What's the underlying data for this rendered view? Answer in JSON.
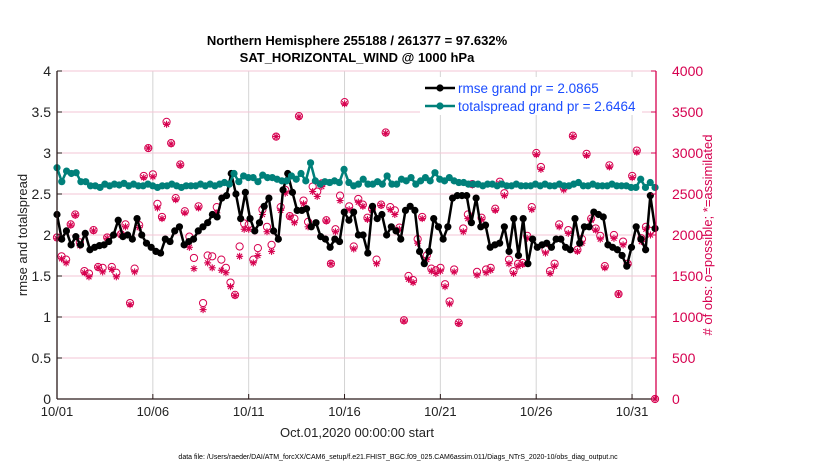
{
  "chart_data": {
    "type": "line",
    "title": [
      "Northern Hemisphere 255188 / 261377 = 97.632%",
      "SAT_HORIZONTAL_WIND @ 1000 hPa"
    ],
    "xlabel": "Oct.01,2020 00:00:00 start",
    "ylabel_left": "rmse and totalspread",
    "ylabel_right": "# of obs: o=possible; *=assimilated",
    "footer": "data file: /Users/raeder/DAI/ATM_forcXX/CAM6_setup/f.e21.FHIST_BGC.f09_025.CAM6assim.011/Diags_NTrS_2020-10/obs_diag_output.nc",
    "x_unit": "days since 10/01 00Z",
    "xlim": [
      0,
      31.25
    ],
    "x_ticks": [
      0,
      5,
      10,
      15,
      20,
      25,
      30
    ],
    "x_tick_labels": [
      "10/01",
      "10/06",
      "10/11",
      "10/16",
      "10/21",
      "10/26",
      "10/31"
    ],
    "ylim_left": [
      0,
      4
    ],
    "y_ticks_left": [
      "0",
      "0.5",
      "1",
      "1.5",
      "2",
      "2.5",
      "3",
      "3.5",
      "4"
    ],
    "ylim_right": [
      0,
      4000
    ],
    "y_ticks_right": [
      "0",
      "500",
      "1000",
      "1500",
      "2000",
      "2500",
      "3000",
      "3500",
      "4000"
    ],
    "grid": true,
    "legend_position": "top-right",
    "series": [
      {
        "name": "rmse grand pr = 2.0865",
        "axis": "left",
        "color": "#000000",
        "values": [
          2.25,
          1.95,
          2.05,
          1.88,
          1.98,
          1.88,
          2.02,
          1.82,
          1.85,
          1.87,
          1.88,
          1.92,
          2.0,
          2.18,
          1.98,
          2.0,
          1.95,
          2.2,
          2.0,
          1.9,
          1.85,
          1.8,
          1.78,
          1.95,
          1.92,
          2.05,
          2.1,
          1.88,
          1.92,
          1.95,
          2.05,
          2.1,
          2.15,
          2.25,
          2.22,
          2.45,
          2.48,
          2.75,
          2.5,
          2.2,
          2.52,
          2.2,
          2.05,
          2.15,
          2.35,
          2.45,
          2.05,
          1.95,
          2.55,
          2.75,
          2.52,
          2.3,
          2.3,
          2.32,
          2.1,
          2.15,
          1.98,
          1.95,
          1.85,
          1.95,
          1.92,
          2.28,
          2.18,
          2.28,
          2.0,
          2.0,
          1.78,
          2.35,
          2.2,
          2.25,
          2.0,
          2.1,
          2.05,
          1.95,
          2.3,
          2.35,
          2.3,
          1.8,
          1.65,
          1.8,
          2.2,
          2.1,
          1.95,
          2.1,
          2.45,
          2.48,
          2.48,
          2.48,
          2.15,
          2.45,
          2.1,
          2.12,
          1.85,
          1.88,
          1.9,
          2.1,
          1.8,
          2.2,
          1.75,
          2.2,
          1.65,
          1.95,
          1.85,
          1.88,
          1.9,
          1.85,
          1.95,
          1.95,
          1.85,
          1.82,
          2.2,
          1.9,
          2.1,
          2.1,
          2.28,
          2.25,
          2.22,
          1.88,
          1.85,
          1.82,
          1.75,
          1.62,
          1.85,
          2.1,
          1.95,
          1.82,
          2.48,
          2.08
        ]
      },
      {
        "name": "totalspread grand pr = 2.6464",
        "axis": "left",
        "color": "#00807a",
        "values": [
          2.82,
          2.65,
          2.78,
          2.75,
          2.76,
          2.65,
          2.65,
          2.6,
          2.6,
          2.58,
          2.62,
          2.6,
          2.62,
          2.61,
          2.63,
          2.6,
          2.62,
          2.6,
          2.6,
          2.62,
          2.6,
          2.58,
          2.6,
          2.6,
          2.62,
          2.6,
          2.58,
          2.6,
          2.6,
          2.6,
          2.62,
          2.6,
          2.62,
          2.6,
          2.62,
          2.64,
          2.62,
          2.75,
          2.65,
          2.72,
          2.7,
          2.7,
          2.65,
          2.73,
          2.7,
          2.7,
          2.68,
          2.66,
          2.66,
          2.72,
          2.68,
          2.75,
          2.66,
          2.88,
          2.66,
          2.62,
          2.65,
          2.64,
          2.66,
          2.64,
          2.8,
          2.64,
          2.6,
          2.62,
          2.68,
          2.62,
          2.62,
          2.65,
          2.62,
          2.72,
          2.62,
          2.62,
          2.68,
          2.66,
          2.7,
          2.62,
          2.66,
          2.7,
          2.66,
          2.76,
          2.68,
          2.66,
          2.7,
          2.66,
          2.64,
          2.64,
          2.62,
          2.62,
          2.62,
          2.6,
          2.62,
          2.62,
          2.6,
          2.62,
          2.6,
          2.6,
          2.62,
          2.6,
          2.6,
          2.6,
          2.62,
          2.6,
          2.62,
          2.6,
          2.6,
          2.62,
          2.6,
          2.6,
          2.62,
          2.64,
          2.6,
          2.6,
          2.62,
          2.6,
          2.6,
          2.6,
          2.62,
          2.6,
          2.6,
          2.6,
          2.58,
          2.58,
          2.68,
          2.58,
          2.64,
          2.58
        ]
      },
      {
        "name": "possible",
        "axis": "right",
        "color": "#d6004f",
        "marker": "o",
        "values": [
          1970,
          1740,
          1700,
          2130,
          2250,
          1910,
          1560,
          1530,
          2060,
          1610,
          1600,
          1970,
          1610,
          1540,
          2010,
          2130,
          1170,
          1590,
          2120,
          2720,
          3060,
          2740,
          2380,
          2220,
          3380,
          3120,
          2450,
          2860,
          2290,
          1980,
          1720,
          2350,
          1170,
          1750,
          1740,
          2340,
          1700,
          1600,
          1420,
          1270,
          1860,
          2140,
          2130,
          1700,
          1840,
          2310,
          2100,
          1880,
          3200,
          2340,
          2550,
          2230,
          2200,
          3450,
          2420,
          2160,
          2590,
          2530,
          2630,
          2180,
          1650,
          2070,
          2480,
          3620,
          2350,
          1860,
          2440,
          2370,
          2210,
          2320,
          1700,
          2370,
          3250,
          2340,
          2300,
          2090,
          960,
          1500,
          1450,
          1950,
          2220,
          1750,
          1590,
          1570,
          1600,
          1400,
          1190,
          1580,
          930,
          2080,
          2250,
          2620,
          1550,
          2210,
          1580,
          1600,
          2320,
          2650,
          2510,
          1700,
          1560,
          1650,
          1660,
          1990,
          2340,
          3000,
          2830,
          1820,
          1560,
          1650,
          2130,
          2580,
          2060,
          3210,
          1820,
          1950,
          2990,
          2200,
          2080,
          1990,
          1620,
          2850,
          2000,
          1280,
          1920,
          1650,
          2720,
          3030,
          1960,
          2100,
          2050,
          0
        ]
      },
      {
        "name": "assimilated",
        "axis": "right",
        "color": "#d6004f",
        "marker": "*",
        "values": [
          1960,
          1710,
          1660,
          2120,
          2240,
          1870,
          1540,
          1490,
          2050,
          1600,
          1550,
          1960,
          1580,
          1490,
          2000,
          2100,
          1150,
          1550,
          2090,
          2700,
          3060,
          2710,
          2330,
          2200,
          3350,
          3110,
          2430,
          2850,
          2270,
          1850,
          1590,
          2330,
          1090,
          1660,
          1600,
          2270,
          1570,
          1540,
          1370,
          1260,
          1740,
          2070,
          2070,
          1660,
          1750,
          2250,
          2040,
          1800,
          3200,
          2300,
          2510,
          2220,
          2150,
          3440,
          2380,
          2100,
          2530,
          2470,
          2590,
          2170,
          1650,
          2040,
          2420,
          3600,
          2310,
          1830,
          2400,
          2350,
          2190,
          2300,
          1650,
          2360,
          3240,
          2310,
          2250,
          2070,
          950,
          1460,
          1420,
          1900,
          2200,
          1700,
          1560,
          1530,
          1560,
          1370,
          1160,
          1550,
          920,
          2040,
          2200,
          2610,
          1510,
          2190,
          1540,
          1570,
          2300,
          2630,
          2480,
          1650,
          1530,
          1620,
          1640,
          1960,
          2310,
          2980,
          2800,
          1780,
          1530,
          1620,
          2100,
          2550,
          2020,
          3200,
          1800,
          1900,
          2970,
          2180,
          2060,
          1950,
          1600,
          2830,
          1960,
          1280,
          1880,
          1640,
          2700,
          3010,
          1920,
          2070,
          2000,
          0
        ]
      }
    ]
  }
}
